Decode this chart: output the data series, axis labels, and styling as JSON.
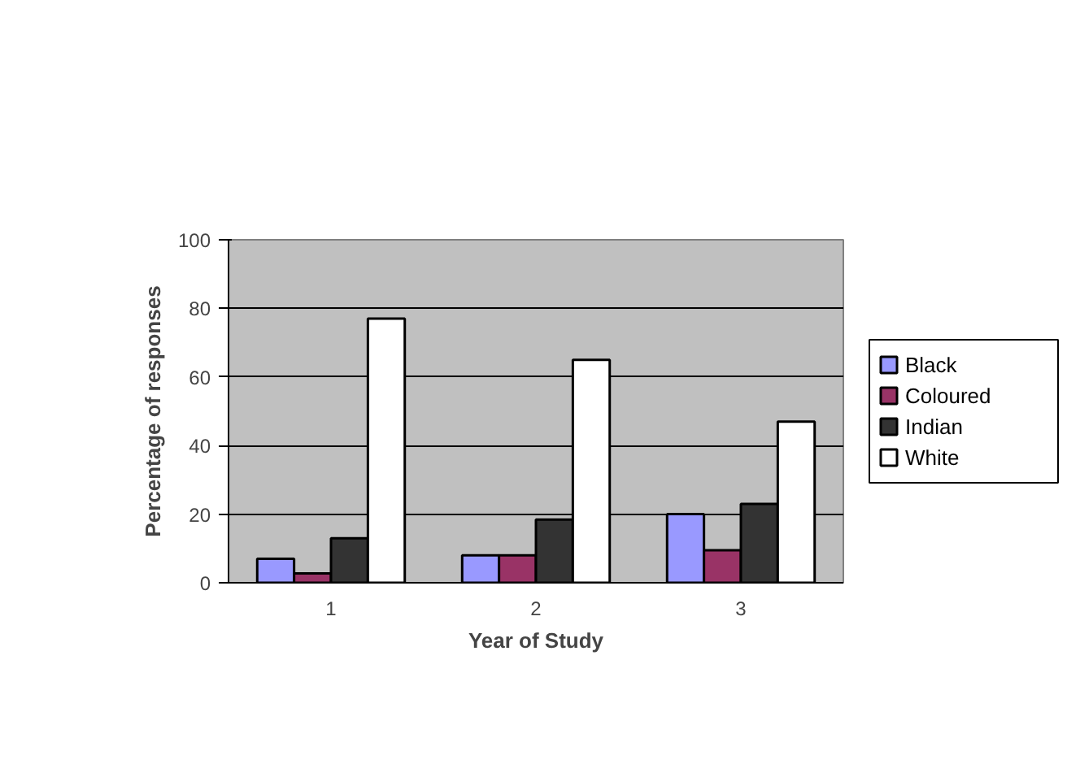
{
  "chart_data": {
    "type": "bar",
    "xlabel": "Year of Study",
    "ylabel": "Percentage of responses",
    "categories": [
      "1",
      "2",
      "3"
    ],
    "series": [
      {
        "name": "Black",
        "color": "#9999ff",
        "values": [
          7,
          8,
          20
        ]
      },
      {
        "name": "Coloured",
        "color": "#993366",
        "values": [
          2.7,
          8,
          9.5
        ]
      },
      {
        "name": "Indian",
        "color": "#333333",
        "values": [
          13,
          18.4,
          23
        ]
      },
      {
        "name": "White",
        "color": "#ffffff",
        "values": [
          77,
          65,
          47
        ]
      }
    ],
    "ylim": [
      0,
      100
    ],
    "yticks": [
      0,
      20,
      40,
      60,
      80,
      100
    ],
    "grid": "y",
    "legend": "right"
  }
}
